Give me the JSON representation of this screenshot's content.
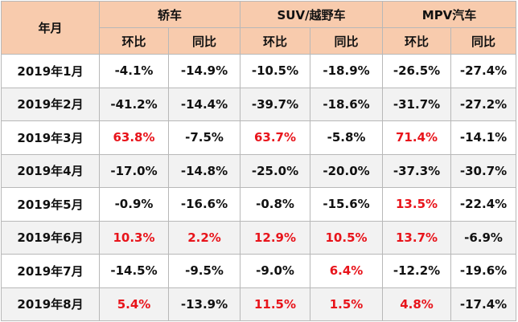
{
  "table": {
    "header": {
      "first": "年月",
      "groups": [
        "轿车",
        "SUV/越野车",
        "MPV汽车"
      ],
      "sub": [
        "环比",
        "同比",
        "环比",
        "同比",
        "环比",
        "同比"
      ]
    },
    "rows": [
      [
        "2019年1月",
        "-4.1%",
        "-14.9%",
        "-10.5%",
        "-18.9%",
        "-26.5%",
        "-27.4%"
      ],
      [
        "2019年2月",
        "-41.2%",
        "-14.4%",
        "-39.7%",
        "-18.6%",
        "-31.7%",
        "-27.2%"
      ],
      [
        "2019年3月",
        "63.8%",
        "-7.5%",
        "63.7%",
        "-5.8%",
        "71.4%",
        "-14.1%"
      ],
      [
        "2019年4月",
        "-17.0%",
        "-14.8%",
        "-25.0%",
        "-20.0%",
        "-37.3%",
        "-30.7%"
      ],
      [
        "2019年5月",
        "-0.9%",
        "-16.6%",
        "-0.8%",
        "-15.6%",
        "13.5%",
        "-22.4%"
      ],
      [
        "2019年6月",
        "10.3%",
        "2.2%",
        "12.9%",
        "10.5%",
        "13.7%",
        "-6.9%"
      ],
      [
        "2019年7月",
        "-14.5%",
        "-9.5%",
        "-9.0%",
        "6.4%",
        "-12.2%",
        "-19.6%"
      ],
      [
        "2019年8月",
        "5.4%",
        "-13.9%",
        "11.5%",
        "1.5%",
        "4.8%",
        "-17.4%"
      ]
    ]
  }
}
